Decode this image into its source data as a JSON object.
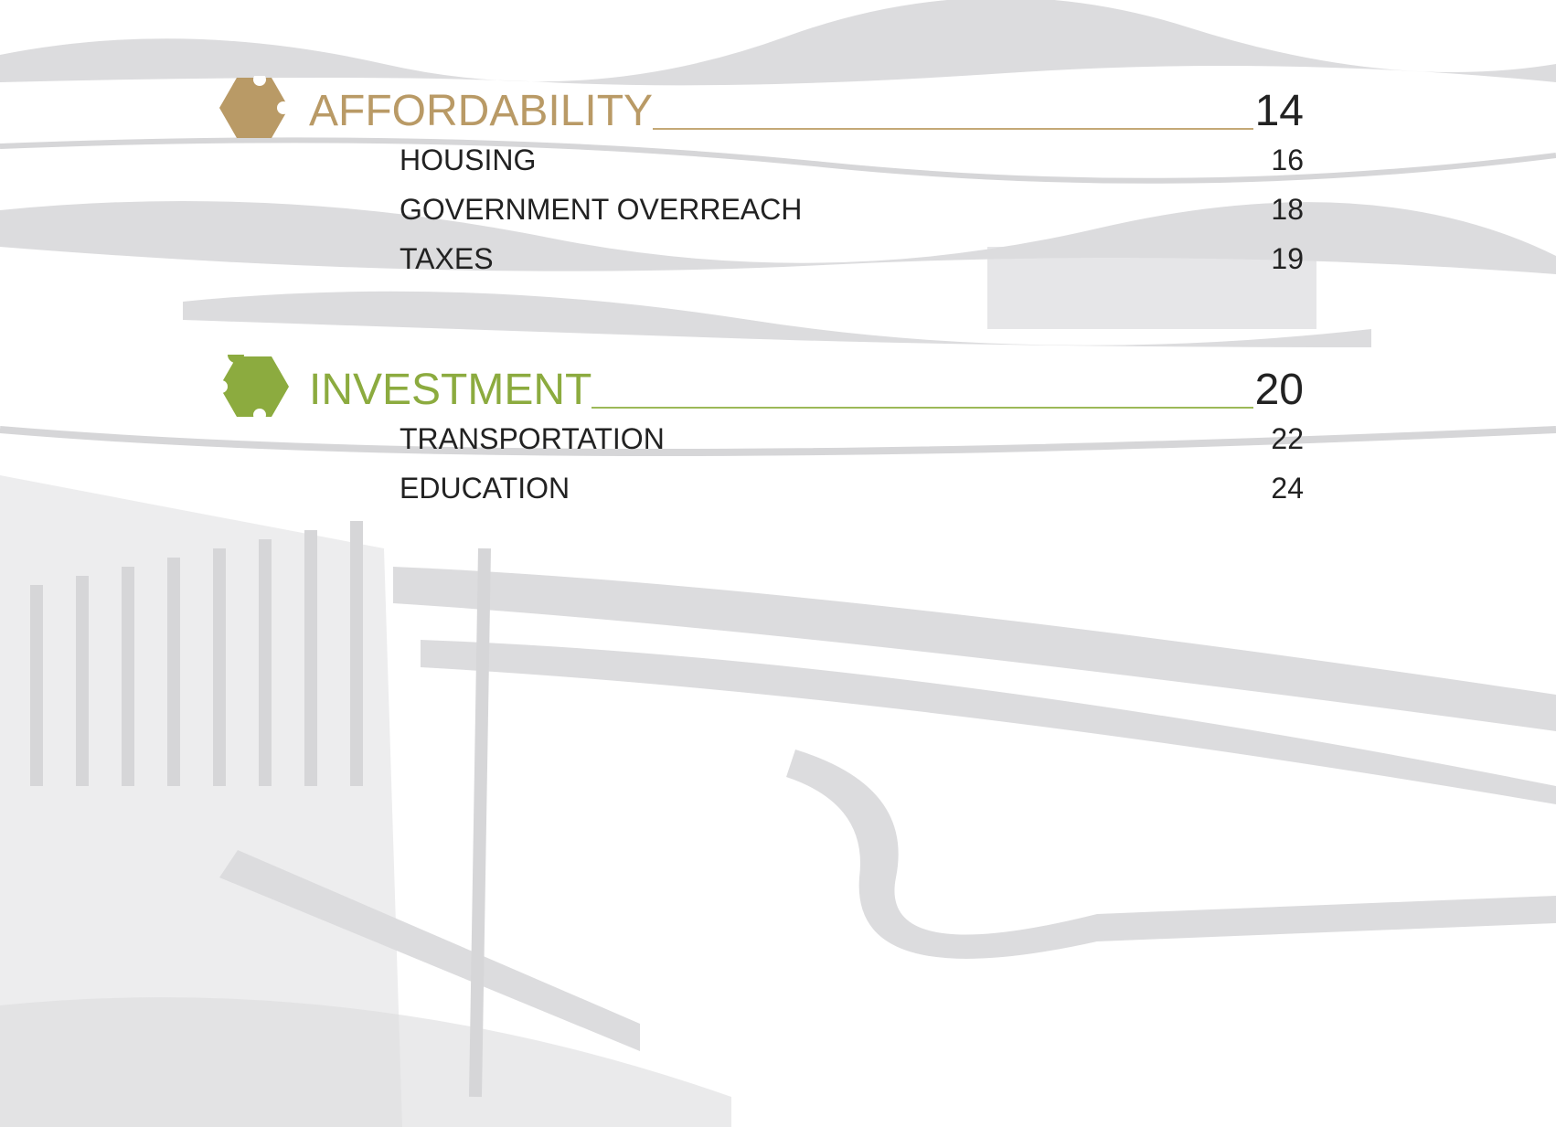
{
  "sections": [
    {
      "title": "AFFORDABILITY",
      "page": "14",
      "items": [
        {
          "label": "HOUSING",
          "page": "16"
        },
        {
          "label": "GOVERNMENT OVERREACH",
          "page": "18"
        },
        {
          "label": "TAXES",
          "page": "19"
        }
      ]
    },
    {
      "title": "INVESTMENT",
      "page": "20",
      "items": [
        {
          "label": "TRANSPORTATION",
          "page": "22"
        },
        {
          "label": "EDUCATION",
          "page": "24"
        }
      ]
    }
  ]
}
